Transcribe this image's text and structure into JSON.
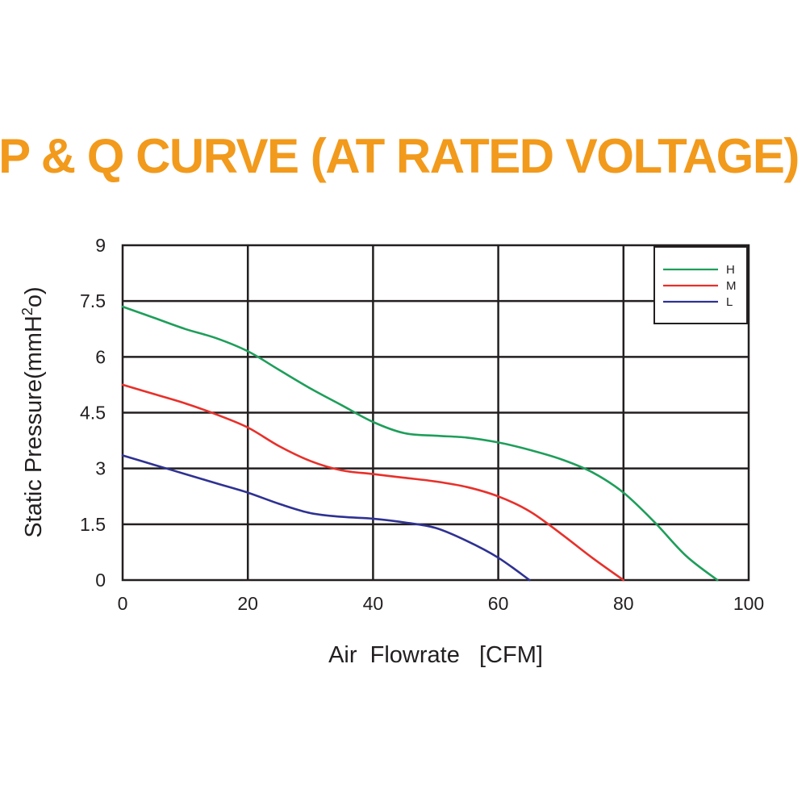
{
  "chart_data": {
    "type": "line",
    "title": "P & Q CURVE (AT RATED VOLTAGE)",
    "title_color": "#f29a1c",
    "xlabel": "Air  Flowrate   [CFM]",
    "ylabel_main": "Static Pressure(mmH",
    "ylabel_sup": "2",
    "ylabel_tail": "o)",
    "xlim": [
      0,
      100
    ],
    "ylim": [
      0,
      9
    ],
    "x_ticks": [
      "0",
      "20",
      "40",
      "60",
      "80",
      "100"
    ],
    "y_ticks": [
      "0",
      "1.5",
      "3",
      "4.5",
      "6",
      "7.5",
      "9"
    ],
    "grid": true,
    "legend_position": "top-right",
    "series": [
      {
        "name": "H",
        "color": "#1e9e5a",
        "x": [
          0,
          5,
          10,
          15,
          20,
          25,
          30,
          35,
          40,
          45,
          50,
          55,
          60,
          65,
          70,
          75,
          80,
          85,
          90,
          95
        ],
        "y": [
          7.35,
          7.05,
          6.75,
          6.5,
          6.15,
          5.65,
          5.15,
          4.7,
          4.25,
          3.95,
          3.88,
          3.83,
          3.7,
          3.5,
          3.25,
          2.9,
          2.35,
          1.55,
          0.65,
          0
        ]
      },
      {
        "name": "M",
        "color": "#e8302a",
        "x": [
          0,
          5,
          10,
          15,
          20,
          25,
          30,
          35,
          40,
          45,
          50,
          55,
          60,
          65,
          70,
          75,
          80
        ],
        "y": [
          5.25,
          5.0,
          4.75,
          4.45,
          4.1,
          3.6,
          3.2,
          2.95,
          2.85,
          2.75,
          2.65,
          2.5,
          2.25,
          1.85,
          1.25,
          0.6,
          0
        ]
      },
      {
        "name": "L",
        "color": "#2e3192",
        "x": [
          0,
          5,
          10,
          15,
          20,
          25,
          30,
          35,
          40,
          45,
          50,
          55,
          60,
          65
        ],
        "y": [
          3.35,
          3.1,
          2.85,
          2.6,
          2.35,
          2.05,
          1.8,
          1.7,
          1.65,
          1.55,
          1.4,
          1.05,
          0.6,
          0
        ]
      }
    ]
  }
}
